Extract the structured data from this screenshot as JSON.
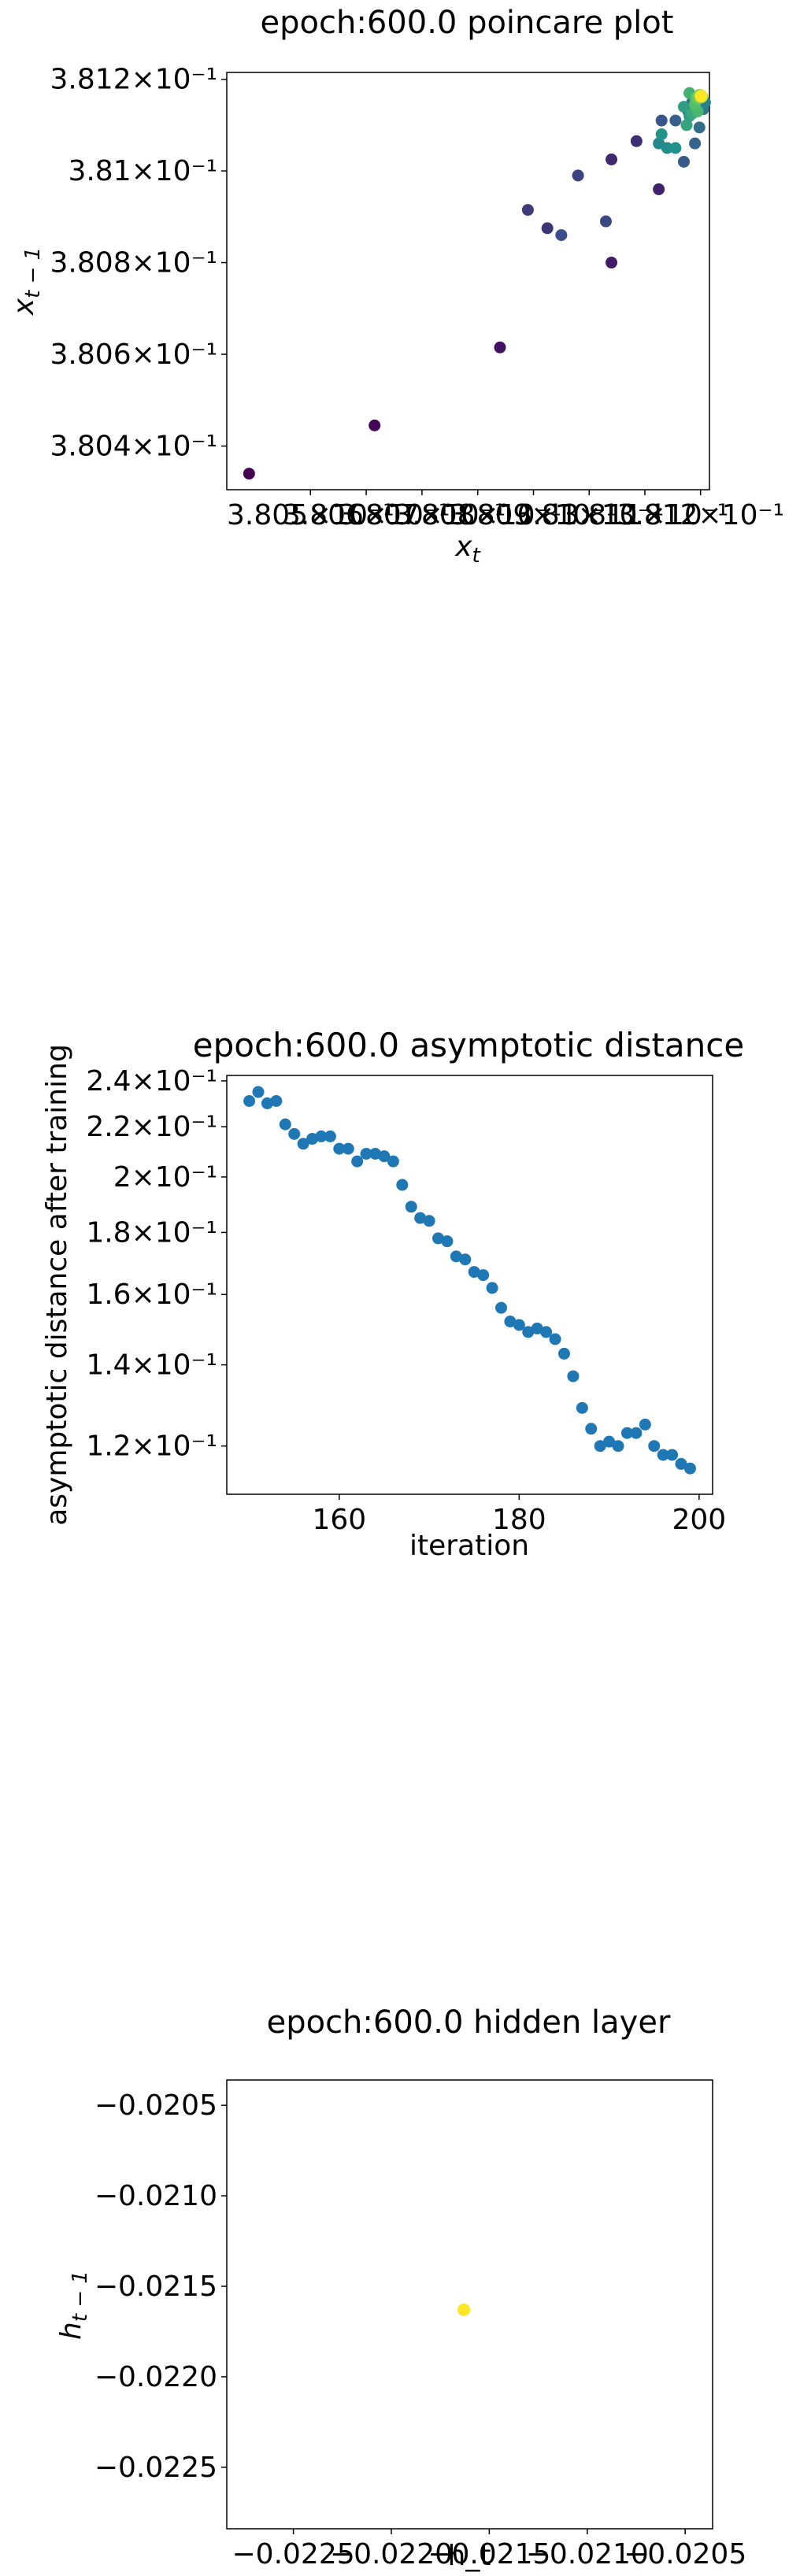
{
  "chart_data": [
    {
      "type": "scatter",
      "title": "epoch:600.0 poincare plot",
      "xlabel": "x_t",
      "ylabel": "x_{t-1}",
      "xscale": "log",
      "yscale": "log",
      "xlim": [
        0.38035,
        0.381216
      ],
      "ylim": [
        0.380305,
        0.381215
      ],
      "colormap": "viridis",
      "x_ticks": [
        {
          "value": 0.3805,
          "label": "3.805×10⁻¹"
        },
        {
          "value": 0.3806,
          "label": "3.806×10⁻¹"
        },
        {
          "value": 0.3807,
          "label": "3.807×10⁻¹"
        },
        {
          "value": 0.3808,
          "label": "3.808×10⁻¹"
        },
        {
          "value": 0.3809,
          "label": "3.809×10⁻¹"
        },
        {
          "value": 0.381,
          "label": "3.81×10⁻¹"
        },
        {
          "value": 0.3811,
          "label": "3.811×10⁻¹"
        },
        {
          "value": 0.3812,
          "label": "3.812×10⁻¹"
        }
      ],
      "y_ticks": [
        {
          "value": 0.3804,
          "label": "3.804×10⁻¹"
        },
        {
          "value": 0.3806,
          "label": "3.806×10⁻¹"
        },
        {
          "value": 0.3808,
          "label": "3.808×10⁻¹"
        },
        {
          "value": 0.381,
          "label": "3.81×10⁻¹"
        },
        {
          "value": 0.3812,
          "label": "3.812×10⁻¹"
        }
      ],
      "points": [
        {
          "x": 0.38039,
          "y": 0.38034,
          "c": 0.0
        },
        {
          "x": 0.380615,
          "y": 0.380445,
          "c": 0.02
        },
        {
          "x": 0.38084,
          "y": 0.380615,
          "c": 0.05
        },
        {
          "x": 0.38104,
          "y": 0.3808,
          "c": 0.08
        },
        {
          "x": 0.381125,
          "y": 0.38096,
          "c": 0.1
        },
        {
          "x": 0.38104,
          "y": 0.381025,
          "c": 0.12
        },
        {
          "x": 0.381085,
          "y": 0.381065,
          "c": 0.14
        },
        {
          "x": 0.380925,
          "y": 0.380875,
          "c": 0.16
        },
        {
          "x": 0.38089,
          "y": 0.380915,
          "c": 0.18
        },
        {
          "x": 0.38098,
          "y": 0.38099,
          "c": 0.2
        },
        {
          "x": 0.38103,
          "y": 0.38089,
          "c": 0.22
        },
        {
          "x": 0.38095,
          "y": 0.38086,
          "c": 0.24
        },
        {
          "x": 0.38113,
          "y": 0.38111,
          "c": 0.26
        },
        {
          "x": 0.38117,
          "y": 0.38102,
          "c": 0.28
        },
        {
          "x": 0.381155,
          "y": 0.38111,
          "c": 0.3
        },
        {
          "x": 0.38119,
          "y": 0.38106,
          "c": 0.32
        },
        {
          "x": 0.381178,
          "y": 0.38113,
          "c": 0.34
        },
        {
          "x": 0.381198,
          "y": 0.381095,
          "c": 0.36
        },
        {
          "x": 0.381185,
          "y": 0.38115,
          "c": 0.38
        },
        {
          "x": 0.381205,
          "y": 0.381135,
          "c": 0.4
        },
        {
          "x": 0.3812,
          "y": 0.381165,
          "c": 0.42
        },
        {
          "x": 0.381208,
          "y": 0.38115,
          "c": 0.44
        },
        {
          "x": 0.381125,
          "y": 0.38106,
          "c": 0.46
        },
        {
          "x": 0.38114,
          "y": 0.38105,
          "c": 0.48
        },
        {
          "x": 0.381155,
          "y": 0.38105,
          "c": 0.5
        },
        {
          "x": 0.38113,
          "y": 0.38108,
          "c": 0.52
        },
        {
          "x": 0.38118,
          "y": 0.38112,
          "c": 0.54
        },
        {
          "x": 0.38117,
          "y": 0.38114,
          "c": 0.56
        },
        {
          "x": 0.381175,
          "y": 0.3811,
          "c": 0.58
        },
        {
          "x": 0.381185,
          "y": 0.381125,
          "c": 0.6
        },
        {
          "x": 0.38119,
          "y": 0.38116,
          "c": 0.62
        },
        {
          "x": 0.38118,
          "y": 0.38117,
          "c": 0.64
        },
        {
          "x": 0.381195,
          "y": 0.38113,
          "c": 0.66
        },
        {
          "x": 0.3812,
          "y": 0.38116,
          "c": 0.68
        },
        {
          "x": 0.38119,
          "y": 0.381145,
          "c": 0.7
        },
        {
          "x": 0.381192,
          "y": 0.38116,
          "c": 0.72
        },
        {
          "x": 0.3812,
          "y": 0.381165,
          "c": 0.74
        },
        {
          "x": 0.381195,
          "y": 0.381158,
          "c": 0.76
        },
        {
          "x": 0.381203,
          "y": 0.381162,
          "c": 0.78
        },
        {
          "x": 0.381198,
          "y": 0.381166,
          "c": 0.8
        },
        {
          "x": 0.3812,
          "y": 0.38116,
          "c": 0.82
        },
        {
          "x": 0.381201,
          "y": 0.381163,
          "c": 0.84
        },
        {
          "x": 0.381199,
          "y": 0.381164,
          "c": 0.86
        },
        {
          "x": 0.381202,
          "y": 0.381161,
          "c": 0.88
        },
        {
          "x": 0.381201,
          "y": 0.381165,
          "c": 0.9
        },
        {
          "x": 0.3812,
          "y": 0.381162,
          "c": 0.92
        },
        {
          "x": 0.381201,
          "y": 0.381163,
          "c": 0.94
        },
        {
          "x": 0.381202,
          "y": 0.381164,
          "c": 0.96
        },
        {
          "x": 0.381201,
          "y": 0.381163,
          "c": 1.0
        }
      ]
    },
    {
      "type": "scatter",
      "title": "epoch:600.0 asymptotic distance",
      "xlabel": "iteration",
      "ylabel": "asymptotic distance after training",
      "xscale": "linear",
      "yscale": "log",
      "xlim": [
        147.5,
        201.5
      ],
      "ylim": [
        0.1095,
        0.2425
      ],
      "color": "#1f77b4",
      "x_ticks": [
        {
          "value": 160,
          "label": "160"
        },
        {
          "value": 180,
          "label": "180"
        },
        {
          "value": 200,
          "label": "200"
        }
      ],
      "y_ticks": [
        {
          "value": 0.12,
          "label": "1.2×10⁻¹"
        },
        {
          "value": 0.14,
          "label": "1.4×10⁻¹"
        },
        {
          "value": 0.16,
          "label": "1.6×10⁻¹"
        },
        {
          "value": 0.18,
          "label": "1.8×10⁻¹"
        },
        {
          "value": 0.2,
          "label": "2×10⁻¹"
        },
        {
          "value": 0.22,
          "label": "2.2×10⁻¹"
        },
        {
          "value": 0.24,
          "label": "2.4×10⁻¹"
        }
      ],
      "x": [
        150,
        151,
        152,
        153,
        154,
        155,
        156,
        157,
        158,
        159,
        160,
        161,
        162,
        163,
        164,
        165,
        166,
        167,
        168,
        169,
        170,
        171,
        172,
        173,
        174,
        175,
        176,
        177,
        178,
        179,
        180,
        181,
        182,
        183,
        184,
        185,
        186,
        187,
        188,
        189,
        190,
        191,
        192,
        193,
        194,
        195,
        196,
        197,
        198,
        199
      ],
      "y": [
        0.231,
        0.235,
        0.23,
        0.231,
        0.221,
        0.217,
        0.213,
        0.215,
        0.216,
        0.216,
        0.211,
        0.211,
        0.206,
        0.209,
        0.209,
        0.208,
        0.206,
        0.197,
        0.189,
        0.185,
        0.184,
        0.178,
        0.177,
        0.172,
        0.171,
        0.167,
        0.166,
        0.162,
        0.156,
        0.152,
        0.151,
        0.149,
        0.15,
        0.149,
        0.147,
        0.143,
        0.137,
        0.129,
        0.124,
        0.12,
        0.121,
        0.12,
        0.123,
        0.123,
        0.125,
        0.12,
        0.118,
        0.118,
        0.116,
        0.115
      ]
    },
    {
      "type": "scatter",
      "title": "epoch:600.0 hidden layer",
      "xlabel": "h_t",
      "ylabel": "h_{t-1}",
      "xscale": "linear",
      "yscale": "linear",
      "xlim": [
        -0.02284,
        -0.02036
      ],
      "ylim": [
        -0.02284,
        -0.02036
      ],
      "x_ticks": [
        {
          "value": -0.0225,
          "label": "−0.0225"
        },
        {
          "value": -0.022,
          "label": "−0.0220"
        },
        {
          "value": -0.0215,
          "label": "−0.0215"
        },
        {
          "value": -0.021,
          "label": "−0.0210"
        },
        {
          "value": -0.0205,
          "label": "−0.0205"
        }
      ],
      "y_ticks": [
        {
          "value": -0.0205,
          "label": "−0.0205"
        },
        {
          "value": -0.021,
          "label": "−0.0210"
        },
        {
          "value": -0.0215,
          "label": "−0.0215"
        },
        {
          "value": -0.022,
          "label": "−0.0220"
        },
        {
          "value": -0.0225,
          "label": "−0.0225"
        }
      ],
      "points": [
        {
          "x": -0.02163,
          "y": -0.02163,
          "color": "#fde725"
        }
      ]
    }
  ]
}
